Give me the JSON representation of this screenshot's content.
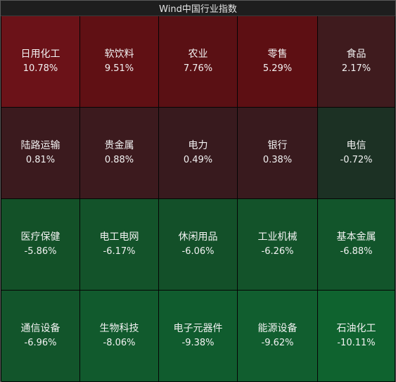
{
  "header": {
    "title": "Wind中国行业指数"
  },
  "tiles": [
    {
      "name": "日用化工",
      "change": "10.78%",
      "color": "#6b1218"
    },
    {
      "name": "软饮料",
      "change": "9.51%",
      "color": "#601014"
    },
    {
      "name": "农业",
      "change": "7.76%",
      "color": "#5a1014"
    },
    {
      "name": "零售",
      "change": "5.29%",
      "color": "#5d0f13"
    },
    {
      "name": "食品",
      "change": "2.17%",
      "color": "#3f1b1e"
    },
    {
      "name": "陆路运输",
      "change": "0.81%",
      "color": "#3b1a1e"
    },
    {
      "name": "贵金属",
      "change": "0.88%",
      "color": "#3c1a1e"
    },
    {
      "name": "电力",
      "change": "0.49%",
      "color": "#381a1e"
    },
    {
      "name": "银行",
      "change": "0.38%",
      "color": "#391a1e"
    },
    {
      "name": "电信",
      "change": "-0.72%",
      "color": "#1c3124"
    },
    {
      "name": "医疗保健",
      "change": "-5.86%",
      "color": "#135128"
    },
    {
      "name": "电工电网",
      "change": "-6.17%",
      "color": "#13532a"
    },
    {
      "name": "休闲用品",
      "change": "-6.06%",
      "color": "#135029"
    },
    {
      "name": "工业机械",
      "change": "-6.26%",
      "color": "#13532a"
    },
    {
      "name": "基本金属",
      "change": "-6.88%",
      "color": "#12552b"
    },
    {
      "name": "通信设备",
      "change": "-6.96%",
      "color": "#12552b"
    },
    {
      "name": "生物科技",
      "change": "-8.06%",
      "color": "#115a2d"
    },
    {
      "name": "电子元器件",
      "change": "-9.38%",
      "color": "#105c2e"
    },
    {
      "name": "能源设备",
      "change": "-9.62%",
      "color": "#115e2f"
    },
    {
      "name": "石油化工",
      "change": "-10.11%",
      "color": "#0f632f"
    }
  ]
}
